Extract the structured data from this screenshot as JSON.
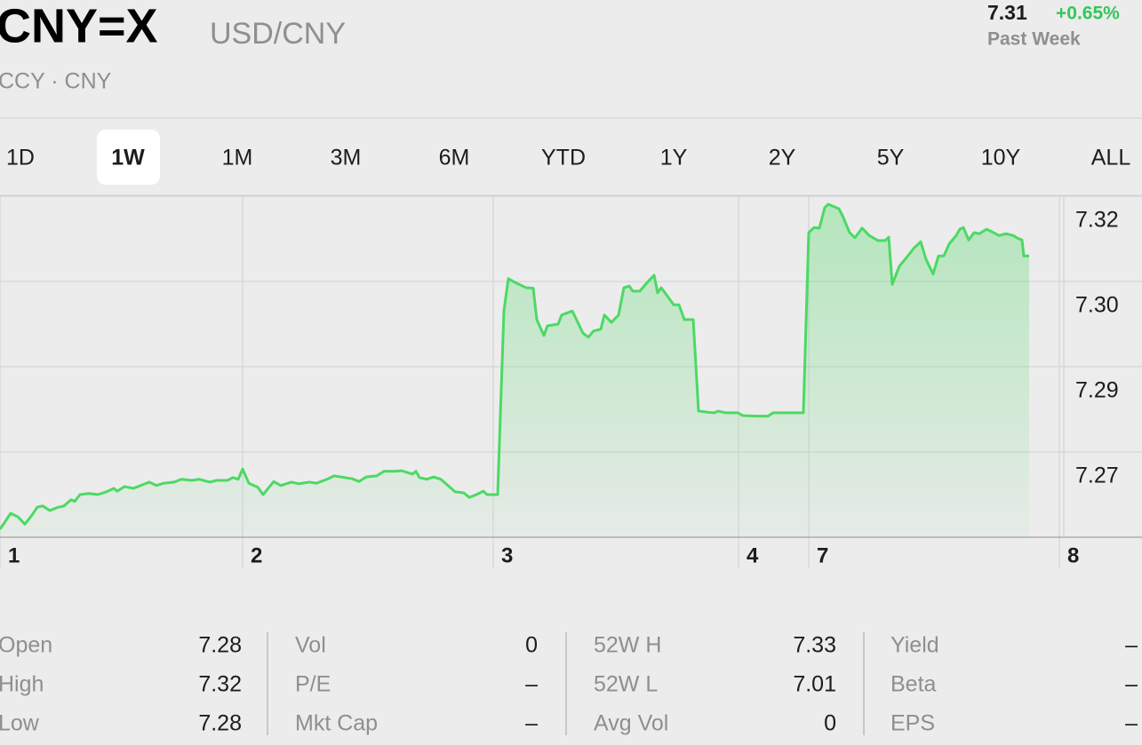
{
  "header": {
    "symbol": "CNY=X",
    "name": "USD/CNY",
    "exchange": "CCY · CNY",
    "price": "7.31",
    "change": "+0.65%",
    "period": "Past Week"
  },
  "ranges": {
    "items": [
      "1D",
      "1W",
      "1M",
      "3M",
      "6M",
      "YTD",
      "1Y",
      "2Y",
      "5Y",
      "10Y",
      "ALL"
    ],
    "selected": "1W"
  },
  "chart_data": {
    "type": "line",
    "color": "#4cd964",
    "grid": true,
    "x": [
      0,
      3,
      5,
      7,
      9,
      10.5,
      12,
      14,
      16,
      18,
      20,
      21,
      22.5,
      25,
      27.5,
      30,
      32,
      33,
      35,
      37.5,
      40,
      42,
      44,
      46,
      49,
      51,
      54,
      56,
      59,
      61,
      64,
      65.5,
      67,
      68.25,
      70,
      72.5,
      74,
      77,
      79,
      82,
      84,
      87,
      89,
      92,
      94,
      97,
      99,
      101,
      103,
      106,
      108,
      111,
      113,
      116,
      117,
      118,
      120,
      122,
      124,
      126,
      128,
      130.5,
      132,
      134,
      136,
      137,
      140,
      141.75,
      143,
      145,
      146,
      148,
      150,
      151,
      153,
      154,
      157,
      158,
      161,
      164,
      165.5,
      167,
      169,
      170,
      172,
      174,
      175.5,
      177,
      178,
      180,
      182,
      184,
      185,
      186,
      188,
      189.5,
      191,
      192.5,
      195,
      196.5,
      199,
      201,
      202,
      204,
      207.5,
      209,
      212.5,
      216,
      217.5,
      220,
      226,
      227.5,
      229,
      230.5,
      232,
      233,
      236,
      237,
      239,
      240.5,
      242.5,
      244.5,
      247,
      249,
      250,
      251,
      253,
      255,
      257,
      259,
      260.5,
      262.5,
      264,
      265.5,
      267,
      269,
      270,
      271,
      272.5,
      274,
      275.5,
      277.5,
      279.5,
      281,
      283,
      285,
      286,
      287.5,
      288,
      289.5
    ],
    "values": [
      7.2589,
      7.2617,
      7.2611,
      7.2598,
      7.2614,
      7.2628,
      7.263,
      7.2622,
      7.2627,
      7.263,
      7.2641,
      7.2638,
      7.265,
      7.2652,
      7.265,
      7.2655,
      7.2661,
      7.2656,
      7.2664,
      7.2661,
      7.2667,
      7.2672,
      7.2666,
      7.267,
      7.2672,
      7.2677,
      7.2675,
      7.2677,
      7.2672,
      7.2675,
      7.2675,
      7.268,
      7.2677,
      7.2695,
      7.267,
      7.2663,
      7.265,
      7.2673,
      7.2666,
      7.2672,
      7.2669,
      7.2672,
      7.267,
      7.2677,
      7.2683,
      7.268,
      7.2678,
      7.2673,
      7.2681,
      7.2683,
      7.2691,
      7.2691,
      7.2692,
      7.2686,
      7.2691,
      7.268,
      7.2677,
      7.2681,
      7.2677,
      7.2666,
      7.2655,
      7.2653,
      7.2645,
      7.265,
      7.2656,
      7.265,
      7.265,
      7.2973,
      7.303,
      7.3023,
      7.302,
      7.3014,
      7.3013,
      7.2958,
      7.293,
      7.2947,
      7.295,
      7.2966,
      7.2973,
      7.2934,
      7.2927,
      7.2938,
      7.2941,
      7.2966,
      7.2953,
      7.2966,
      7.3014,
      7.3017,
      7.3008,
      7.3008,
      7.3023,
      7.3036,
      7.3005,
      7.3014,
      7.2997,
      7.2984,
      7.2984,
      7.2958,
      7.2958,
      7.2797,
      7.2795,
      7.2794,
      7.2797,
      7.2794,
      7.2794,
      7.2789,
      7.2788,
      7.2788,
      7.2794,
      7.2794,
      7.2794,
      7.3111,
      7.312,
      7.3119,
      7.3155,
      7.3161,
      7.3153,
      7.3141,
      7.3111,
      7.3102,
      7.3119,
      7.3106,
      7.3097,
      7.3097,
      7.3103,
      7.302,
      7.3052,
      7.3067,
      7.3083,
      7.3095,
      7.3064,
      7.3038,
      7.307,
      7.307,
      7.3091,
      7.3106,
      7.3117,
      7.312,
      7.3098,
      7.3111,
      7.3109,
      7.3117,
      7.3111,
      7.3106,
      7.3109,
      7.3106,
      7.3102,
      7.3098,
      7.307,
      7.307
    ],
    "xlim": [
      0,
      298
    ],
    "xticks": [
      {
        "value": 0,
        "label": "1"
      },
      {
        "value": 68.25,
        "label": "2"
      },
      {
        "value": 138.75,
        "label": "3"
      },
      {
        "value": 207.75,
        "label": "4"
      },
      {
        "value": 227.5,
        "label": "7"
      },
      {
        "value": 298,
        "label": "8"
      }
    ],
    "ylim": [
      7.2575,
      7.3175
    ],
    "yticks": [
      {
        "value": 7.2725,
        "label": "7.27"
      },
      {
        "value": 7.2875,
        "label": "7.29"
      },
      {
        "value": 7.3025,
        "label": "7.30"
      },
      {
        "value": 7.3175,
        "label": "7.32"
      }
    ]
  },
  "stats": {
    "columns": [
      {
        "rows": [
          {
            "label": "Open",
            "value": "7.28"
          },
          {
            "label": "High",
            "value": "7.32"
          },
          {
            "label": "Low",
            "value": "7.28"
          }
        ]
      },
      {
        "rows": [
          {
            "label": "Vol",
            "value": "0"
          },
          {
            "label": "P/E",
            "value": "–"
          },
          {
            "label": "Mkt Cap",
            "value": "–"
          }
        ]
      },
      {
        "rows": [
          {
            "label": "52W H",
            "value": "7.33"
          },
          {
            "label": "52W L",
            "value": "7.01"
          },
          {
            "label": "Avg Vol",
            "value": "0"
          }
        ]
      },
      {
        "rows": [
          {
            "label": "Yield",
            "value": "–"
          },
          {
            "label": "Beta",
            "value": "–"
          },
          {
            "label": "EPS",
            "value": "–"
          }
        ]
      }
    ]
  }
}
